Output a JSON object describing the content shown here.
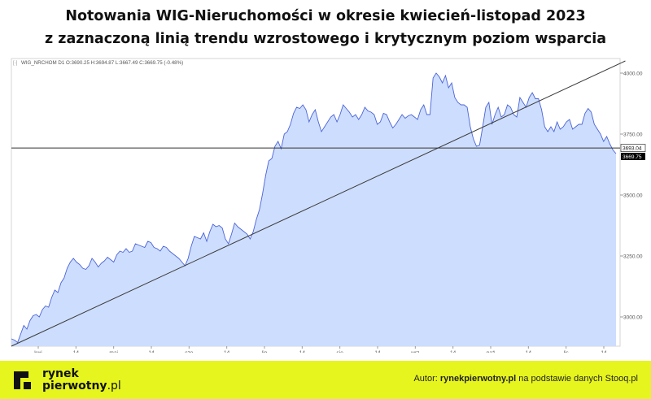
{
  "header": {
    "title_line1": "Notowania WIG-Nieruchomości w okresie kwiecień-listopad 2023",
    "title_line2": "z zaznaczoną linią trendu wzrostowego i krytycznym poziom wsparcia"
  },
  "chart_info": "WIG_NRCHOM  D1  O:3690.25  H:3694.87  L:3667.49  C:3669.75  (-0.48%)",
  "chart_data": {
    "type": "area",
    "title": "",
    "xlabel": "",
    "ylabel": "",
    "ylim": [
      2880,
      4060
    ],
    "yticks": [
      3000,
      3250,
      3500,
      3750,
      4000
    ],
    "ytick_labels": [
      "3000.00",
      "3250.00",
      "3500.00",
      "3750.00",
      "4000.00"
    ],
    "xticks": [
      "kwi",
      "14",
      "maj",
      "14",
      "cze",
      "14",
      "lip",
      "14",
      "sie",
      "14",
      "wrz",
      "14",
      "paź",
      "14",
      "lis",
      "14"
    ],
    "series": [
      {
        "values": [
          2910,
          2905,
          2895,
          2930,
          2965,
          2950,
          2985,
          3005,
          3010,
          3000,
          3030,
          3045,
          3040,
          3080,
          3110,
          3100,
          3140,
          3160,
          3200,
          3225,
          3240,
          3225,
          3215,
          3200,
          3195,
          3210,
          3240,
          3225,
          3205,
          3220,
          3230,
          3245,
          3235,
          3225,
          3255,
          3270,
          3265,
          3280,
          3265,
          3270,
          3300,
          3295,
          3290,
          3285,
          3310,
          3305,
          3285,
          3280,
          3270,
          3290,
          3285,
          3270,
          3260,
          3250,
          3240,
          3225,
          3210,
          3240,
          3290,
          3330,
          3325,
          3320,
          3345,
          3310,
          3350,
          3380,
          3370,
          3375,
          3365,
          3320,
          3300,
          3340,
          3385,
          3370,
          3360,
          3350,
          3340,
          3320,
          3350,
          3400,
          3440,
          3505,
          3580,
          3640,
          3650,
          3700,
          3720,
          3690,
          3750,
          3760,
          3790,
          3835,
          3860,
          3855,
          3870,
          3850,
          3800,
          3830,
          3850,
          3800,
          3760,
          3780,
          3800,
          3820,
          3830,
          3800,
          3830,
          3870,
          3855,
          3840,
          3820,
          3830,
          3810,
          3830,
          3860,
          3845,
          3840,
          3830,
          3790,
          3800,
          3835,
          3830,
          3800,
          3775,
          3790,
          3810,
          3830,
          3815,
          3825,
          3830,
          3820,
          3810,
          3850,
          3870,
          3830,
          3830,
          3980,
          4000,
          3985,
          3960,
          3990,
          3940,
          3960,
          3900,
          3880,
          3870,
          3870,
          3860,
          3780,
          3730,
          3700,
          3705,
          3780,
          3860,
          3880,
          3790,
          3830,
          3860,
          3820,
          3830,
          3870,
          3860,
          3830,
          3820,
          3900,
          3880,
          3860,
          3900,
          3920,
          3895,
          3895,
          3850,
          3780,
          3760,
          3780,
          3760,
          3800,
          3770,
          3780,
          3800,
          3810,
          3770,
          3780,
          3790,
          3790,
          3835,
          3855,
          3840,
          3790,
          3770,
          3750,
          3720,
          3740,
          3710,
          3685,
          3670
        ]
      }
    ],
    "reference_lines": [
      {
        "type": "trend",
        "from": [
          0,
          2880
        ],
        "to": [
          198,
          4050
        ]
      },
      {
        "type": "horizontal",
        "y": 3693.04,
        "label": "3693.04"
      }
    ],
    "last_value_label": "3669.75",
    "grid": false,
    "colors": {
      "fill": "#cdddfd",
      "line": "#4a63d8",
      "trend": "#3a3a3a",
      "support": "#333333"
    }
  },
  "footer": {
    "logo_line1": "rynek",
    "logo_line2_bold": "pierwotny",
    "logo_line2_suffix": ".pl",
    "source_prefix": "Autor: ",
    "source_author": "rynekpierwotny.pl",
    "source_suffix": " na podstawie danych Stooq.pl",
    "bg_color": "#e6f51d"
  }
}
